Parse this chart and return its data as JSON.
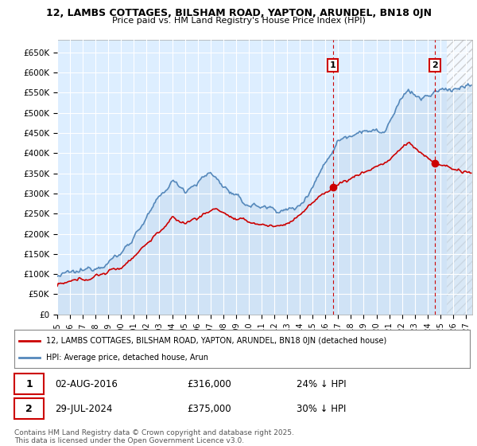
{
  "title1": "12, LAMBS COTTAGES, BILSHAM ROAD, YAPTON, ARUNDEL, BN18 0JN",
  "title2": "Price paid vs. HM Land Registry's House Price Index (HPI)",
  "ylim": [
    0,
    680000
  ],
  "yticks": [
    0,
    50000,
    100000,
    150000,
    200000,
    250000,
    300000,
    350000,
    400000,
    450000,
    500000,
    550000,
    600000,
    650000
  ],
  "ytick_labels": [
    "£0",
    "£50K",
    "£100K",
    "£150K",
    "£200K",
    "£250K",
    "£300K",
    "£350K",
    "£400K",
    "£450K",
    "£500K",
    "£550K",
    "£600K",
    "£650K"
  ],
  "xlim_start": 1995.0,
  "xlim_end": 2027.5,
  "hpi_color": "#5588bb",
  "hpi_fill_color": "#c8ddf0",
  "price_color": "#cc0000",
  "bg_color": "#ffffff",
  "plot_bg": "#ddeeff",
  "grid_color": "#ffffff",
  "hatch_color": "#bbbbbb",
  "sale1_year": 2016.58,
  "sale1_price": 316000,
  "sale2_year": 2024.57,
  "sale2_price": 375000,
  "sale1_label": "1",
  "sale2_label": "2",
  "sale1_date": "02-AUG-2016",
  "sale1_amount": "£316,000",
  "sale1_hpi": "24% ↓ HPI",
  "sale2_date": "29-JUL-2024",
  "sale2_amount": "£375,000",
  "sale2_hpi": "30% ↓ HPI",
  "legend_line1": "12, LAMBS COTTAGES, BILSHAM ROAD, YAPTON, ARUNDEL, BN18 0JN (detached house)",
  "legend_line2": "HPI: Average price, detached house, Arun",
  "footer": "Contains HM Land Registry data © Crown copyright and database right 2025.\nThis data is licensed under the Open Government Licence v3.0.",
  "hatch_start": 2025.5
}
